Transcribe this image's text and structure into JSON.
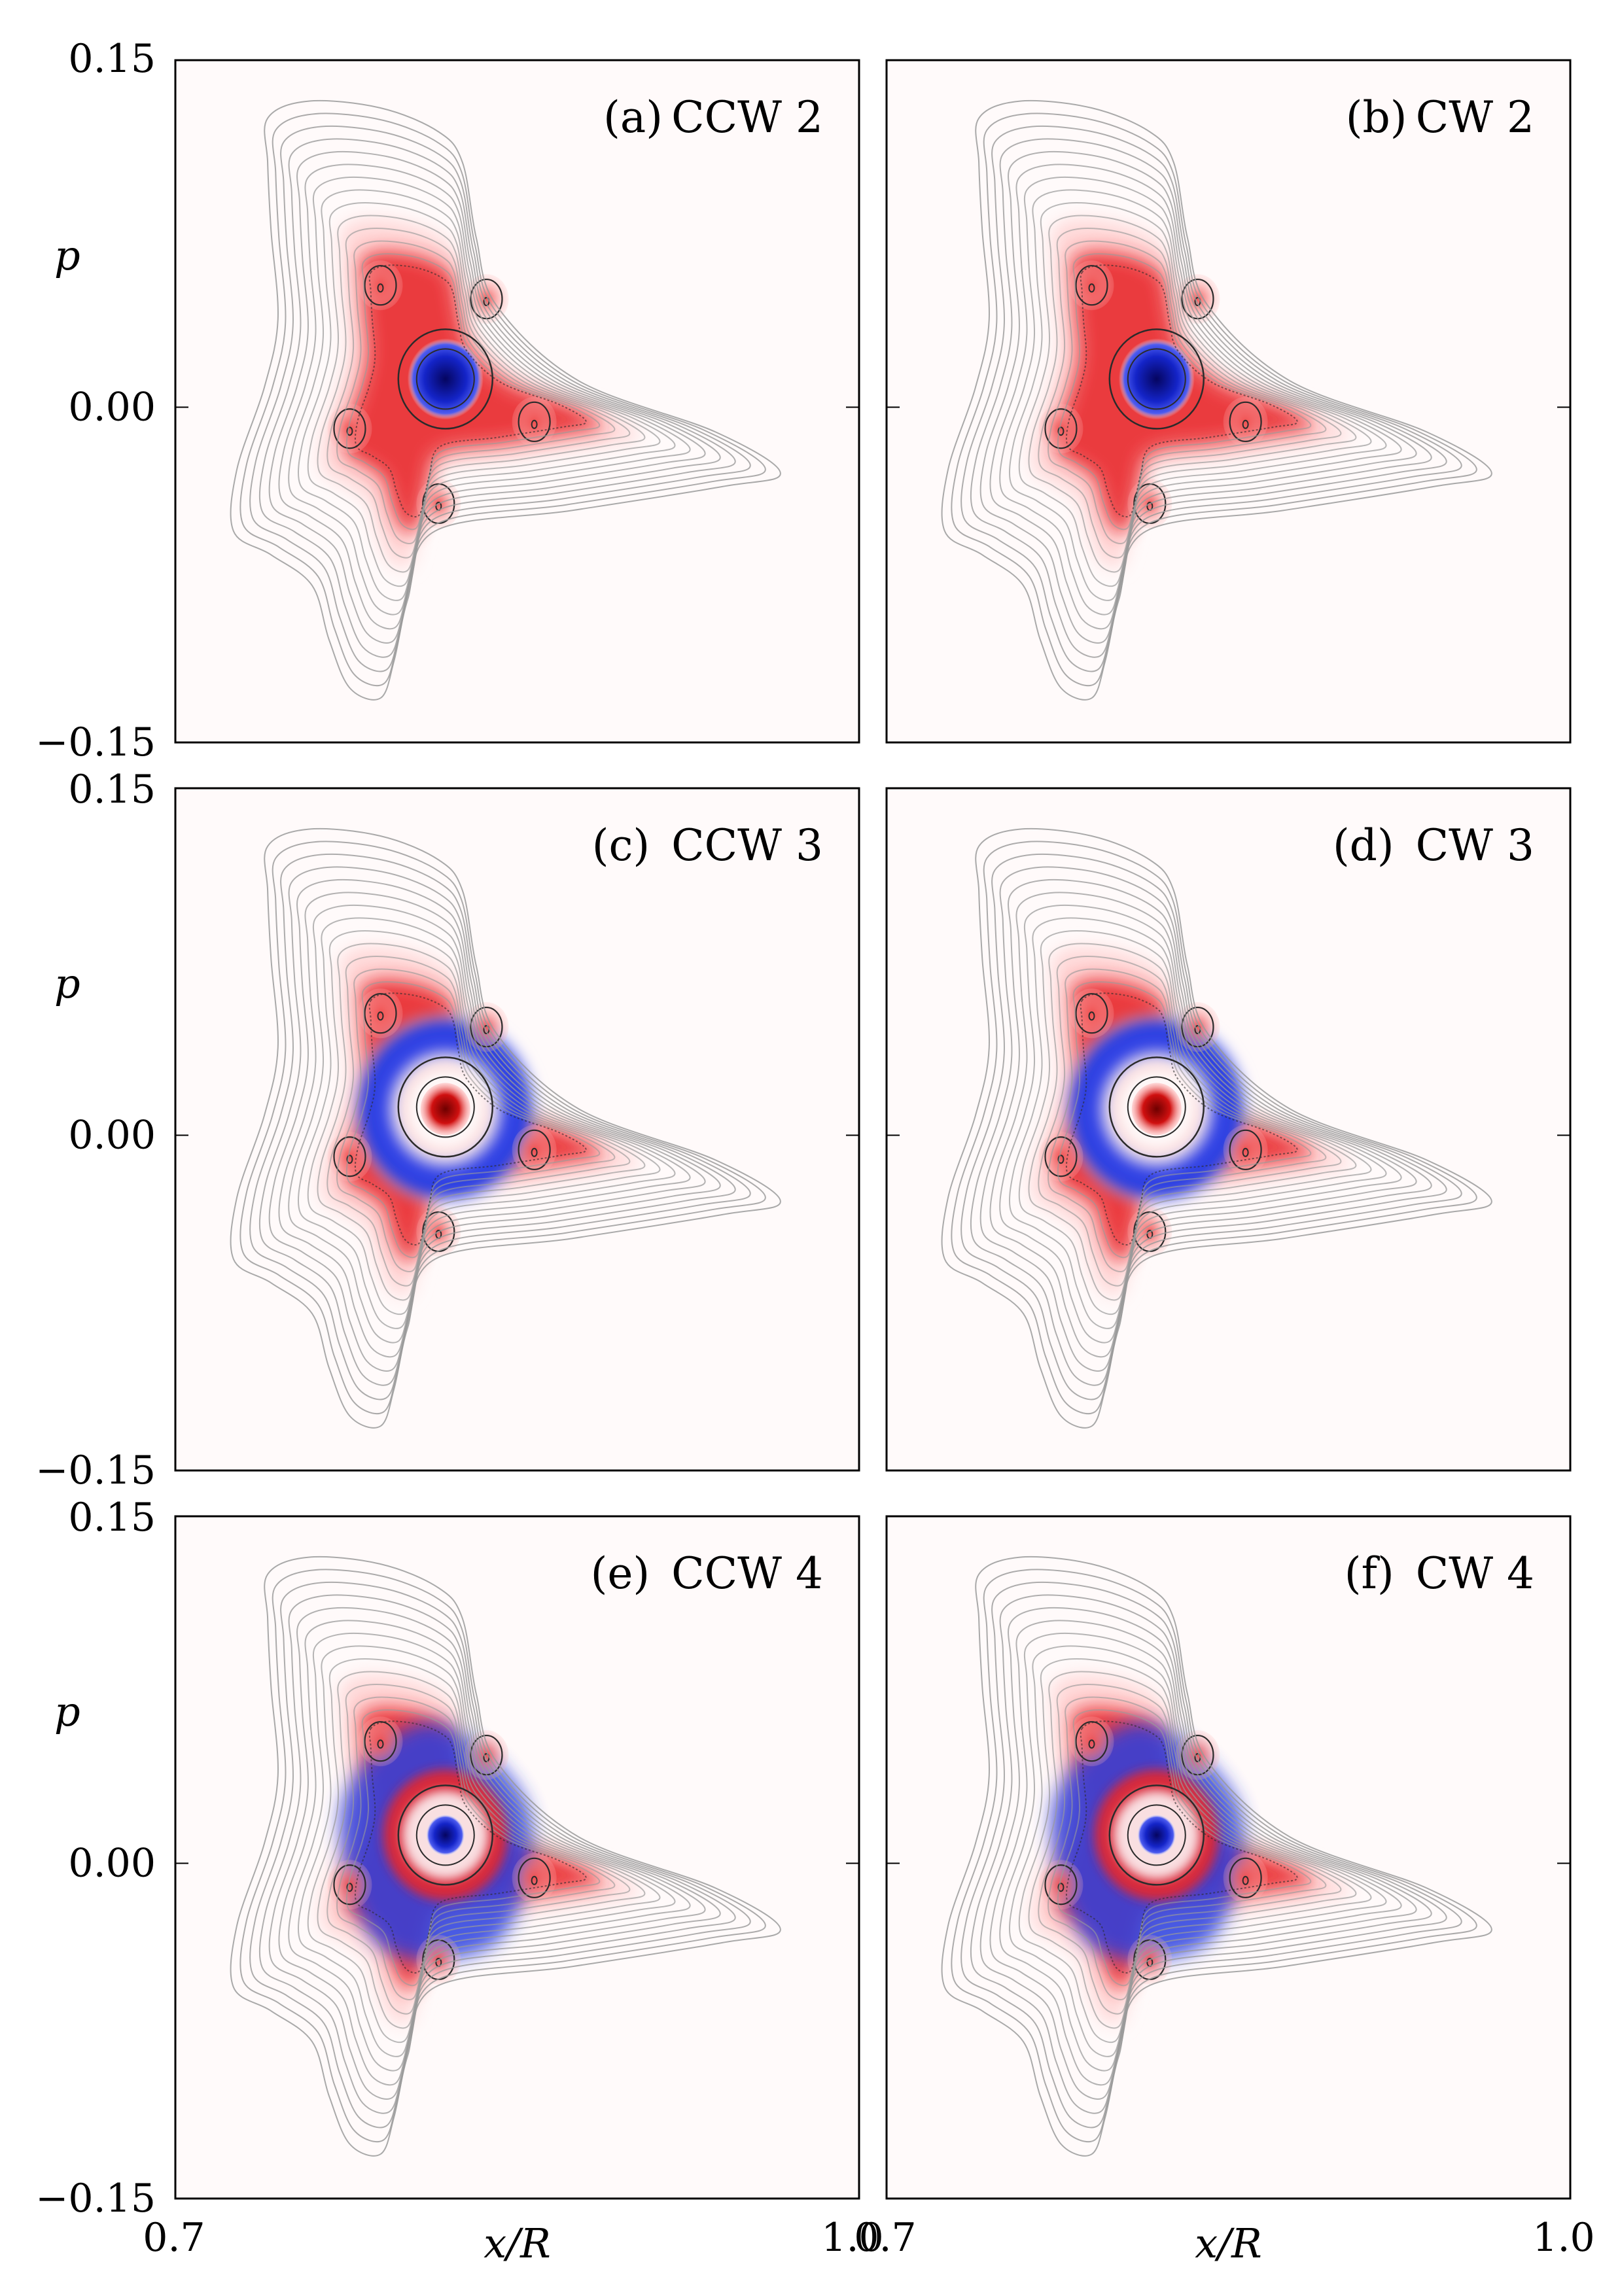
{
  "chart_data": {
    "type": "heatmap",
    "description_free": true,
    "x_axis": {
      "label": "x/R",
      "range": [
        0.7,
        1.0
      ],
      "tick_labels": [
        "0.7",
        "1.0"
      ]
    },
    "y_axis": {
      "label": "p",
      "range": [
        -0.15,
        0.15
      ],
      "tick_labels": [
        "0.15",
        "0.00",
        "−0.15"
      ]
    },
    "colors": {
      "positive": "#e8282a",
      "negative": "#2a3fe0",
      "dark_negative": "#0b0b7a",
      "dark_positive": "#8b0000",
      "contour": "#9a9a9a",
      "contour_inner": "#2b2b2b"
    },
    "panels": [
      {
        "label": "(a) CCW 2",
        "direction": "CCW",
        "mode": 2,
        "center_sign": "negative",
        "ring_sign": "positive"
      },
      {
        "label": "(b) CW 2",
        "direction": "CW",
        "mode": 2,
        "center_sign": "negative",
        "ring_sign": "positive"
      },
      {
        "label": "(c) CCW 3",
        "direction": "CCW",
        "mode": 3,
        "center_sign": "positive",
        "ring_sign": "negative"
      },
      {
        "label": "(d) CW 3",
        "direction": "CW",
        "mode": 3,
        "center_sign": "positive",
        "ring_sign": "negative"
      },
      {
        "label": "(e) CCW 4",
        "direction": "CCW",
        "mode": 4,
        "center_sign": "negative",
        "ring_sign": "positive"
      },
      {
        "label": "(f) CW 4",
        "direction": "CW",
        "mode": 4,
        "center_sign": "negative",
        "ring_sign": "positive"
      }
    ]
  }
}
